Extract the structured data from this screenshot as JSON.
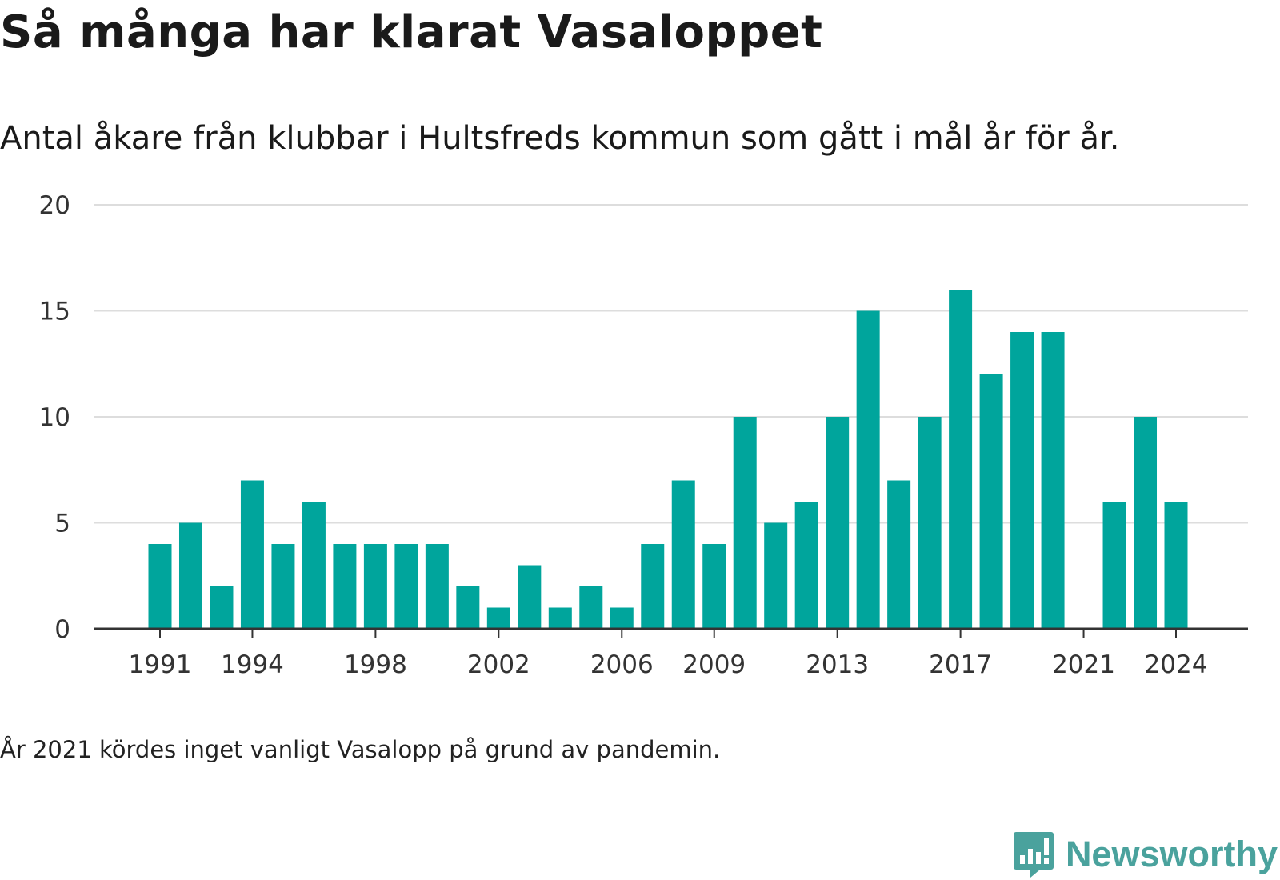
{
  "title": "Så många har klarat Vasaloppet",
  "subtitle": "Antal åkare från klubbar i Hultsfreds kommun som gått i mål år för år.",
  "footnote": "År 2021 kördes inget vanligt Vasalopp på grund av pandemin.",
  "brand": {
    "name": "Newsworthy",
    "icon": "newsworthy-logo-icon",
    "color": "#4aa29d"
  },
  "colors": {
    "bar": "#00a59c",
    "grid": "#dddddd",
    "axis": "#333333"
  },
  "chart_data": {
    "type": "bar",
    "title": "Så många har klarat Vasaloppet",
    "subtitle": "Antal åkare från klubbar i Hultsfreds kommun som gått i mål år för år.",
    "xlabel": "",
    "ylabel": "",
    "x": [
      1991,
      1992,
      1993,
      1994,
      1995,
      1996,
      1997,
      1998,
      1999,
      2000,
      2001,
      2002,
      2003,
      2004,
      2005,
      2006,
      2007,
      2008,
      2009,
      2010,
      2011,
      2012,
      2013,
      2014,
      2015,
      2016,
      2017,
      2018,
      2019,
      2020,
      2021,
      2022,
      2023,
      2024
    ],
    "values": [
      4,
      5,
      2,
      7,
      4,
      6,
      4,
      4,
      4,
      4,
      2,
      1,
      3,
      1,
      2,
      1,
      4,
      7,
      4,
      10,
      5,
      6,
      10,
      15,
      7,
      10,
      16,
      12,
      14,
      14,
      0,
      6,
      10,
      6
    ],
    "x_ticks": [
      "1991",
      "1994",
      "1998",
      "2002",
      "2006",
      "2009",
      "2013",
      "2017",
      "2021",
      "2024"
    ],
    "y_ticks": [
      "0",
      "5",
      "10",
      "15",
      "20"
    ],
    "ylim": [
      0,
      20
    ],
    "grid": true,
    "legend": "none"
  }
}
